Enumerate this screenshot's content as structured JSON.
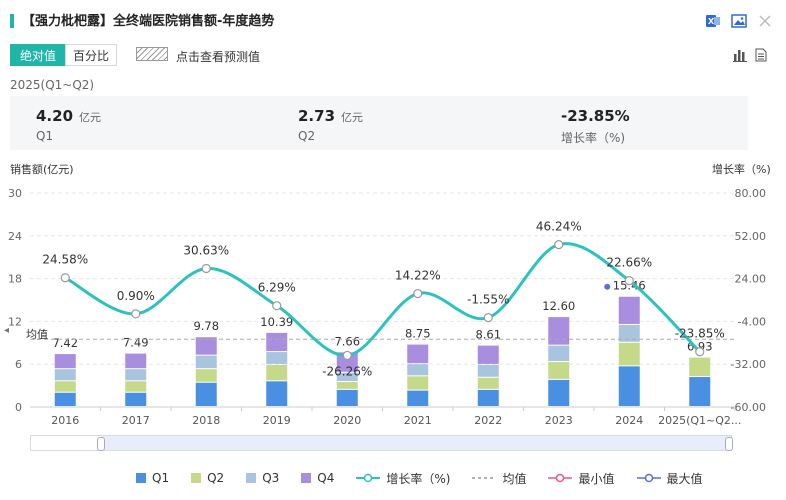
{
  "header": {
    "title": "【强力枇杷露】全终端医院销售额-年度趋势",
    "icons": [
      "excel-export-icon",
      "image-export-icon",
      "close-icon"
    ]
  },
  "toolbar": {
    "absolute_label": "绝对值",
    "percent_label": "百分比",
    "forecast_label": "点击查看预测值",
    "icons": [
      "bar-chart-icon",
      "table-icon"
    ]
  },
  "summary": {
    "period": "2025(Q1~Q2)",
    "items": [
      {
        "value": "4.20",
        "unit": "亿元",
        "label": "Q1"
      },
      {
        "value": "2.73",
        "unit": "亿元",
        "label": "Q2"
      },
      {
        "value": "-23.85%",
        "unit": "",
        "label": "增长率（%)"
      }
    ]
  },
  "colors": {
    "accent": "#1fb6a8",
    "q1": "#4a90e2",
    "q2": "#c5d98a",
    "q3": "#a9c4de",
    "q4": "#a98ee0",
    "growth_line": "#2bc2bf"
  },
  "chart_data": {
    "type": "bar",
    "stacked": true,
    "categories": [
      "2016",
      "2017",
      "2018",
      "2019",
      "2020",
      "2021",
      "2022",
      "2023",
      "2024",
      "2025(Q1~Q2..."
    ],
    "totals": [
      7.42,
      7.49,
      9.78,
      10.39,
      7.66,
      8.75,
      8.61,
      12.6,
      15.46,
      6.93
    ],
    "series": [
      {
        "name": "Q1",
        "values": [
          2.0,
          2.0,
          3.4,
          3.6,
          2.4,
          2.3,
          2.4,
          3.8,
          5.7,
          4.2
        ]
      },
      {
        "name": "Q2",
        "values": [
          1.6,
          1.6,
          1.9,
          2.3,
          1.1,
          2.0,
          1.7,
          2.5,
          3.3,
          2.73
        ]
      },
      {
        "name": "Q3",
        "values": [
          1.7,
          1.7,
          1.9,
          1.8,
          1.3,
          1.7,
          1.8,
          2.3,
          2.5,
          0
        ]
      },
      {
        "name": "Q4",
        "values": [
          2.12,
          2.19,
          2.58,
          2.69,
          2.86,
          2.75,
          2.71,
          4.0,
          3.96,
          0
        ]
      }
    ],
    "growth": {
      "name": "增长率（%)",
      "values": [
        24.58,
        0.9,
        30.63,
        6.29,
        -26.26,
        14.22,
        -1.55,
        46.24,
        22.66,
        -23.85
      ],
      "labels": [
        "24.58%",
        "0.90%",
        "30.63%",
        "6.29%",
        "-26.26%",
        "14.22%",
        "-1.55%",
        "46.24%",
        "22.66%",
        "-23.85%"
      ]
    },
    "average": {
      "label": "均值",
      "value": 9.5
    },
    "ylabel": "销售额(亿元)",
    "y2label": "增长率（%)",
    "ylim": [
      0,
      30
    ],
    "yticks": [
      0,
      6,
      12,
      18,
      24,
      30
    ],
    "y2lim": [
      -60,
      80
    ],
    "y2ticks": [
      "80.00",
      "52.00",
      "24.00",
      "-4.00",
      "-32.00",
      "-60.00"
    ],
    "legend": [
      "Q1",
      "Q2",
      "Q3",
      "Q4",
      "增长率（%)",
      "均值",
      "最小值",
      "最大值"
    ],
    "legend_position": "bottom"
  }
}
